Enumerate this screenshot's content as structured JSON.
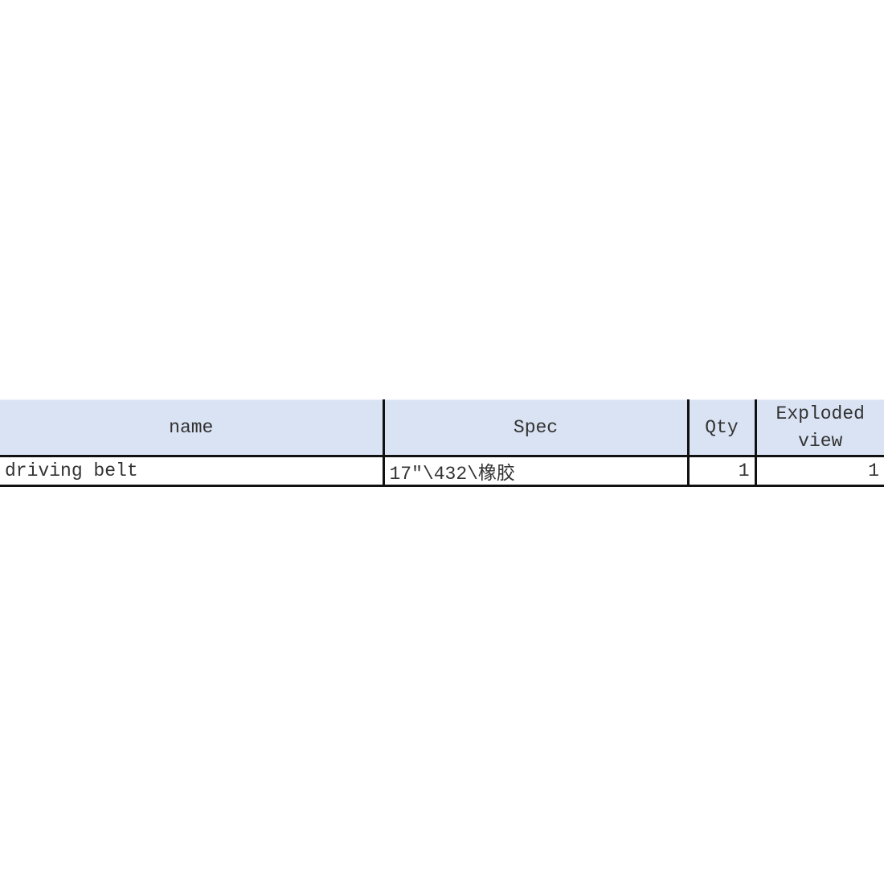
{
  "table": {
    "headers": [
      "name",
      "Spec",
      "Qty",
      "Exploded view"
    ],
    "rows": [
      {
        "name": "driving belt",
        "spec": "17″\\432\\橡胶",
        "qty": "1",
        "exploded_view": "1"
      }
    ]
  },
  "colors": {
    "header_bg": "#dae3f3",
    "border": "#111111",
    "selection_marker": "#1a73e8"
  }
}
